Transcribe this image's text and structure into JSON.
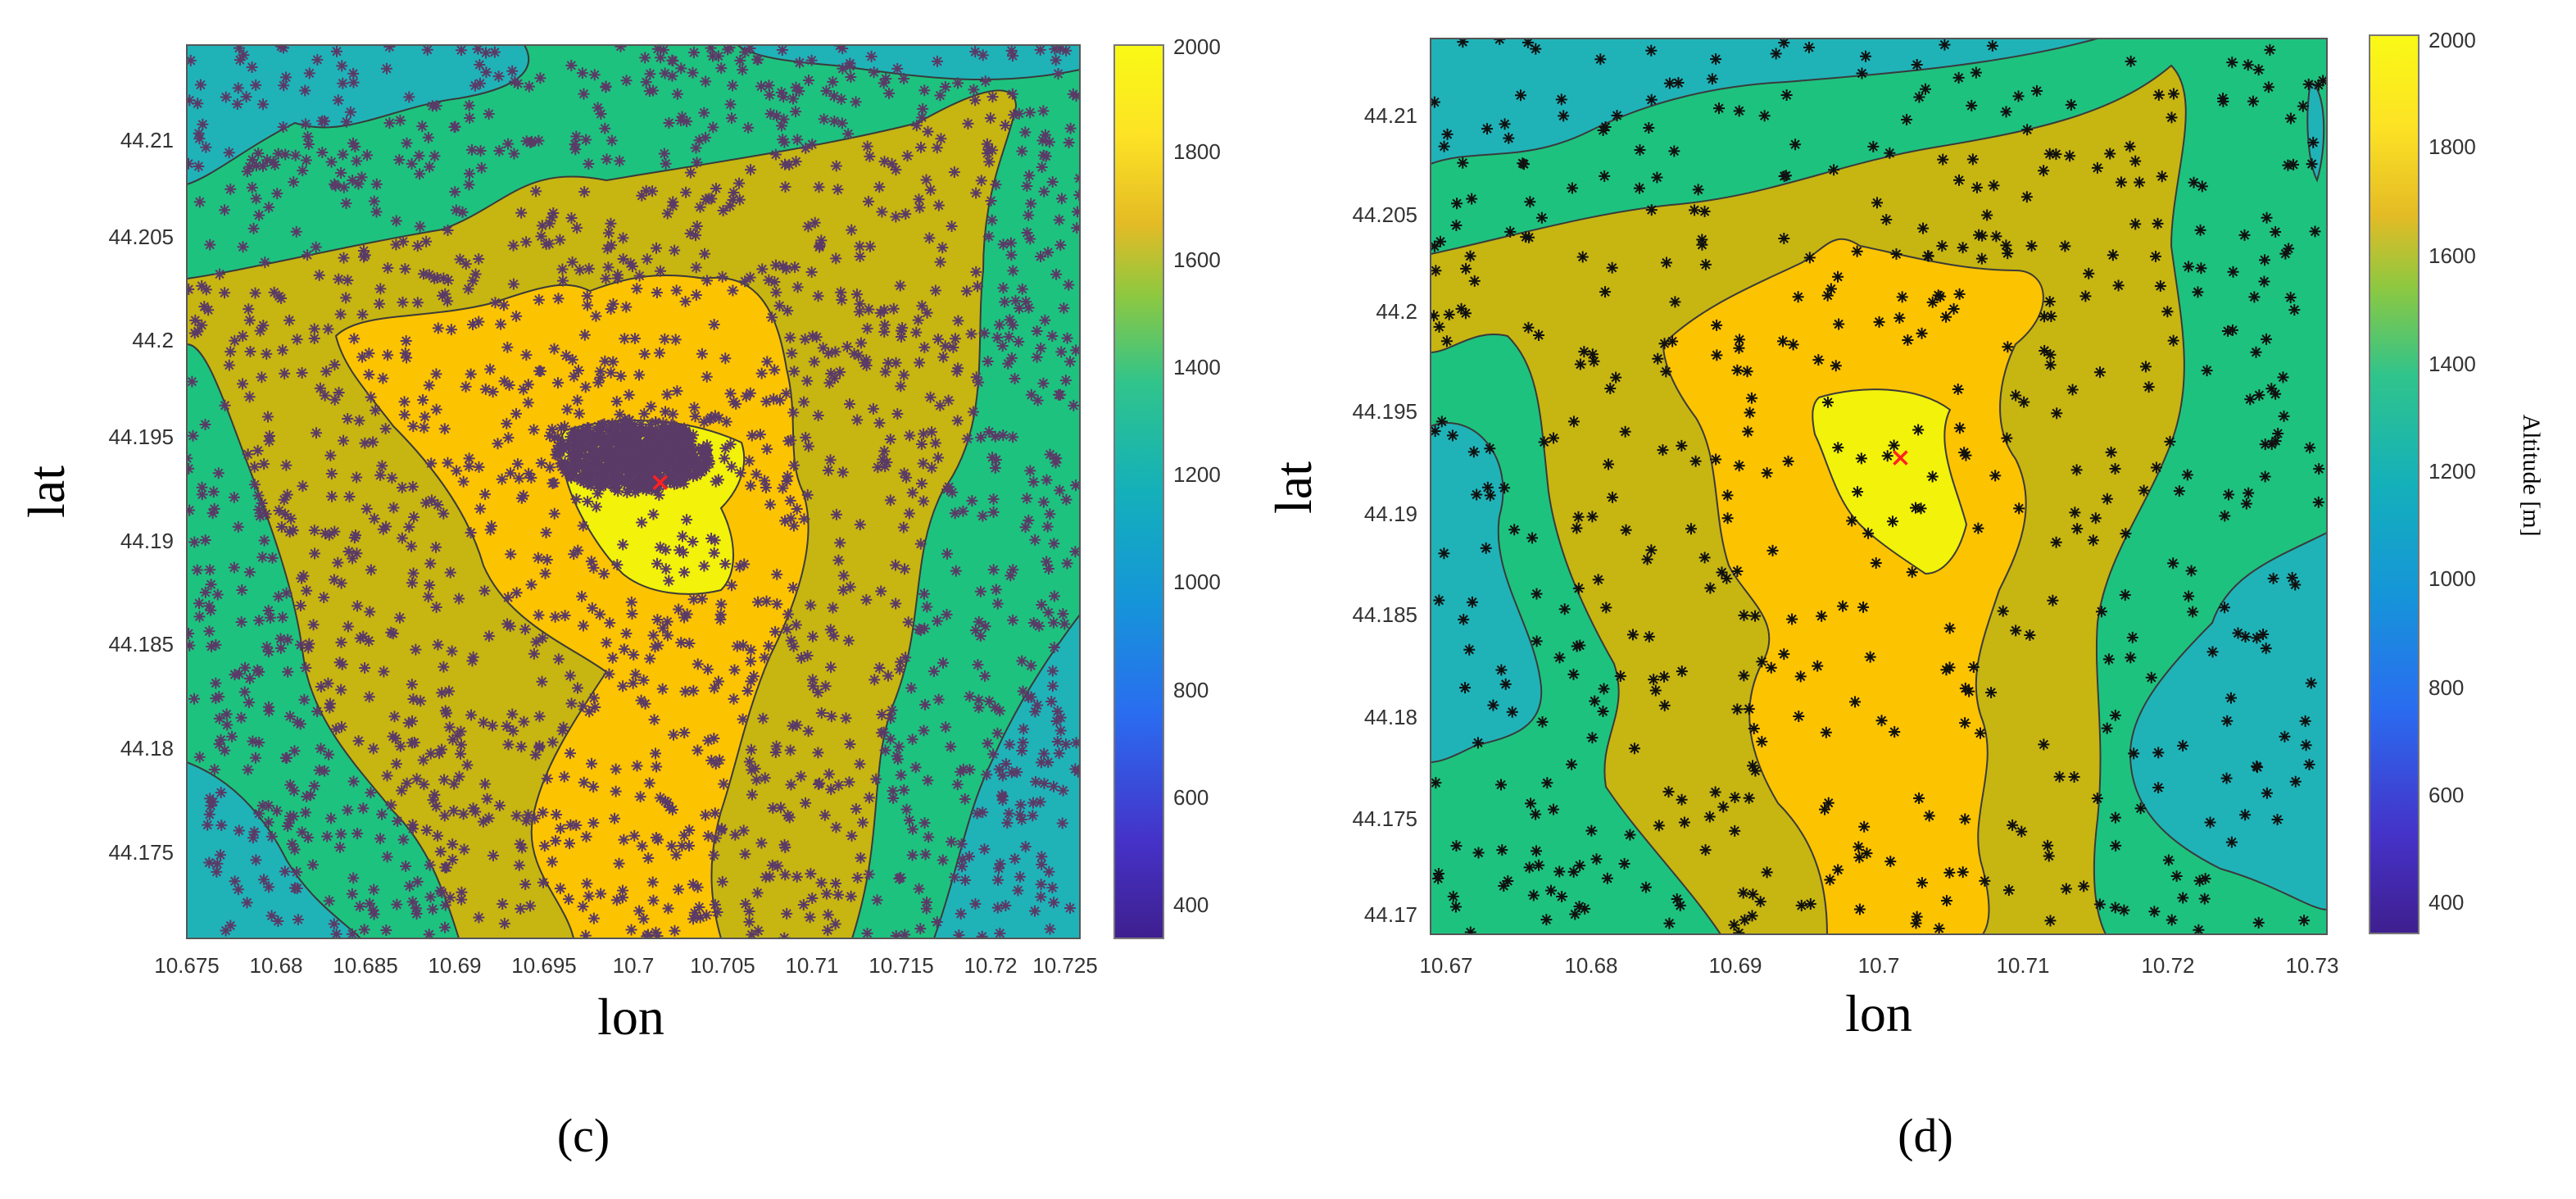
{
  "chart_data": [
    {
      "type": "contour",
      "panel_label": "(c)",
      "xlabel": "lon",
      "ylabel": "lat",
      "xlim": [
        10.675,
        10.725
      ],
      "ylim": [
        44.171,
        44.2145
      ],
      "xticks": [
        "10.675",
        "10.68",
        "10.685",
        "10.69",
        "10.695",
        "10.7",
        "10.705",
        "10.71",
        "10.715",
        "10.72",
        "10.725"
      ],
      "yticks": [
        "44.175",
        "44.18",
        "44.185",
        "44.19",
        "44.195",
        "44.2",
        "44.205",
        "44.21"
      ],
      "colorbar": {
        "ticks": [
          "400",
          "600",
          "800",
          "1000",
          "1200",
          "1400",
          "1600",
          "1800",
          "2000"
        ],
        "range": [
          350,
          2000
        ],
        "label": ""
      },
      "marker": {
        "symbol": "asterisk",
        "color": "#5a3a66",
        "approx_count": 2600
      },
      "cluster": {
        "lon": 10.7,
        "lat": 44.1945
      },
      "target": {
        "symbol": "x",
        "color": "#ff2020",
        "lon": 10.7015,
        "lat": 44.1932
      }
    },
    {
      "type": "contour",
      "panel_label": "(d)",
      "xlabel": "lon",
      "ylabel": "lat",
      "xlim": [
        10.669,
        10.731
      ],
      "ylim": [
        44.169,
        44.2145
      ],
      "xticks": [
        "10.67",
        "10.68",
        "10.69",
        "10.7",
        "10.71",
        "10.72",
        "10.73"
      ],
      "yticks": [
        "44.17",
        "44.175",
        "44.18",
        "44.185",
        "44.19",
        "44.195",
        "44.2",
        "44.205",
        "44.21"
      ],
      "colorbar": {
        "ticks": [
          "400",
          "600",
          "800",
          "1000",
          "1200",
          "1400",
          "1600",
          "1800",
          "2000"
        ],
        "range": [
          350,
          2000
        ],
        "label": "Altitude [m]"
      },
      "marker": {
        "symbol": "asterisk",
        "color": "#111111",
        "approx_count": 560
      },
      "target": {
        "symbol": "x",
        "color": "#ff2020",
        "lon": 10.7015,
        "lat": 44.1932
      }
    }
  ],
  "colors": {
    "level_1100": "#1fb3b8",
    "level_1400": "#1ec27f",
    "level_1600": "#c7b512",
    "level_1800": "#fcc300",
    "level_2000": "#f2f20a",
    "contour_line": "#3a3a3a",
    "colorbar_stops": [
      "#3f1f8f",
      "#4532c8",
      "#2a6cf0",
      "#1596d8",
      "#14b0ba",
      "#2fc48c",
      "#8ec840",
      "#e4bb25",
      "#fde325",
      "#f9f915"
    ]
  }
}
